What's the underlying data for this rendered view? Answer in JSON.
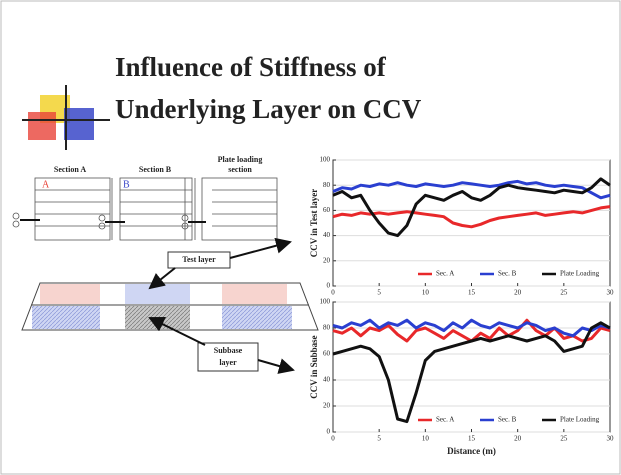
{
  "slide": {
    "title_lines": [
      "Influence of Stiffness of",
      "Underlying Layer on CCV"
    ],
    "section_labels": [
      "Section A",
      "Section B"
    ],
    "plate_label_lines": [
      "Plate loading",
      "section"
    ],
    "block_letters": [
      "A",
      "B"
    ],
    "test_layer": "Test layer",
    "subbase_lines": [
      "Subbase",
      "layer"
    ]
  },
  "chart_data": [
    {
      "type": "line",
      "y_label": "CCV in Test layer",
      "x": [
        0,
        1,
        2,
        3,
        4,
        5,
        6,
        7,
        8,
        9,
        10,
        11,
        12,
        13,
        14,
        15,
        16,
        17,
        18,
        19,
        20,
        21,
        22,
        23,
        24,
        25,
        26,
        27,
        28,
        29,
        30
      ],
      "series": [
        {
          "name": "Sec. A",
          "color": "#e8282a",
          "values": [
            55,
            57,
            56,
            58,
            57,
            58,
            57,
            58,
            59,
            58,
            57,
            56,
            55,
            50,
            48,
            47,
            49,
            52,
            54,
            55,
            56,
            57,
            58,
            56,
            57,
            58,
            59,
            58,
            60,
            62,
            63
          ]
        },
        {
          "name": "Sec. B",
          "color": "#2a3fd0",
          "values": [
            75,
            78,
            77,
            80,
            79,
            81,
            80,
            82,
            80,
            79,
            81,
            80,
            79,
            80,
            82,
            81,
            80,
            79,
            80,
            82,
            83,
            81,
            82,
            80,
            79,
            80,
            79,
            78,
            74,
            70,
            72
          ]
        },
        {
          "name": "Plate Loading",
          "color": "#111111",
          "values": [
            72,
            75,
            70,
            72,
            60,
            50,
            42,
            40,
            48,
            65,
            72,
            70,
            68,
            72,
            75,
            70,
            68,
            72,
            78,
            80,
            78,
            77,
            76,
            75,
            74,
            76,
            75,
            74,
            78,
            85,
            80
          ]
        }
      ],
      "xlim": [
        0,
        30
      ],
      "xticks": [
        0,
        5,
        10,
        15,
        20,
        25,
        30
      ],
      "ylim": [
        0,
        100
      ],
      "yticks": [
        0,
        20,
        40,
        60,
        80,
        100
      ],
      "grid": true,
      "legend": "lower right"
    },
    {
      "type": "line",
      "y_label": "CCV in Subbase",
      "x_label": "Distance (m)",
      "x": [
        0,
        1,
        2,
        3,
        4,
        5,
        6,
        7,
        8,
        9,
        10,
        11,
        12,
        13,
        14,
        15,
        16,
        17,
        18,
        19,
        20,
        21,
        22,
        23,
        24,
        25,
        26,
        27,
        28,
        29,
        30
      ],
      "series": [
        {
          "name": "Sec. A",
          "color": "#e8282a",
          "values": [
            78,
            76,
            80,
            74,
            80,
            78,
            82,
            75,
            70,
            78,
            80,
            76,
            72,
            78,
            74,
            70,
            76,
            72,
            80,
            74,
            78,
            86,
            78,
            74,
            80,
            72,
            74,
            70,
            72,
            80,
            78
          ]
        },
        {
          "name": "Sec. B",
          "color": "#2a3fd0",
          "values": [
            82,
            80,
            84,
            82,
            86,
            80,
            84,
            82,
            86,
            80,
            84,
            82,
            78,
            84,
            80,
            86,
            82,
            80,
            84,
            82,
            80,
            84,
            82,
            78,
            80,
            76,
            74,
            80,
            78,
            82,
            80
          ]
        },
        {
          "name": "Plate Loading",
          "color": "#111111",
          "values": [
            60,
            62,
            64,
            66,
            64,
            58,
            40,
            10,
            8,
            30,
            55,
            62,
            64,
            66,
            68,
            70,
            72,
            70,
            72,
            74,
            72,
            70,
            72,
            74,
            70,
            62,
            64,
            66,
            80,
            84,
            80
          ]
        }
      ],
      "xlim": [
        0,
        30
      ],
      "xticks": [
        0,
        5,
        10,
        15,
        20,
        25,
        30
      ],
      "ylim": [
        0,
        100
      ],
      "yticks": [
        0,
        20,
        40,
        60,
        80,
        100
      ],
      "grid": true,
      "legend": "lower right"
    }
  ]
}
